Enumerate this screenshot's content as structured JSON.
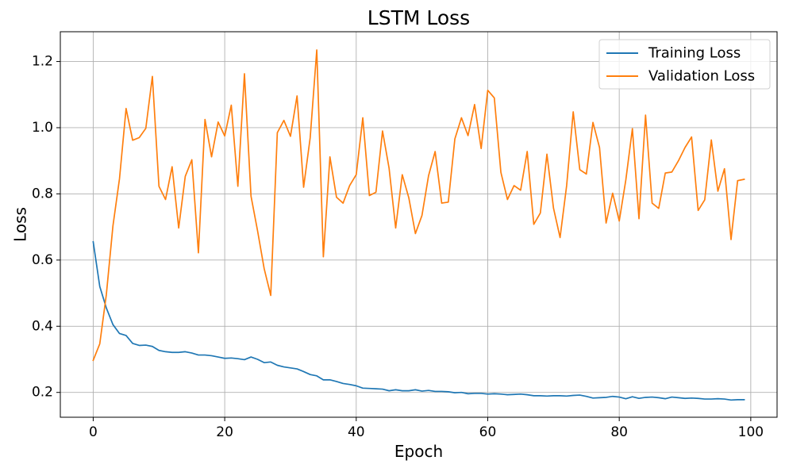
{
  "chart_data": {
    "type": "line",
    "title": "LSTM Loss",
    "xlabel": "Epoch",
    "ylabel": "Loss",
    "xlim": [
      -5,
      104
    ],
    "ylim": [
      0.125,
      1.29
    ],
    "xticks": [
      0,
      20,
      40,
      60,
      80,
      100
    ],
    "yticks": [
      0.2,
      0.4,
      0.6,
      0.8,
      1.0,
      1.2
    ],
    "xtick_labels": [
      "0",
      "20",
      "40",
      "60",
      "80",
      "100"
    ],
    "ytick_labels": [
      "0.2",
      "0.4",
      "0.6",
      "0.8",
      "1.0",
      "1.2"
    ],
    "grid": true,
    "legend_position": "top-right",
    "x": [
      0,
      1,
      2,
      3,
      4,
      5,
      6,
      7,
      8,
      9,
      10,
      11,
      12,
      13,
      14,
      15,
      16,
      17,
      18,
      19,
      20,
      21,
      22,
      23,
      24,
      25,
      26,
      27,
      28,
      29,
      30,
      31,
      32,
      33,
      34,
      35,
      36,
      37,
      38,
      39,
      40,
      41,
      42,
      43,
      44,
      45,
      46,
      47,
      48,
      49,
      50,
      51,
      52,
      53,
      54,
      55,
      56,
      57,
      58,
      59,
      60,
      61,
      62,
      63,
      64,
      65,
      66,
      67,
      68,
      69,
      70,
      71,
      72,
      73,
      74,
      75,
      76,
      77,
      78,
      79,
      80,
      81,
      82,
      83,
      84,
      85,
      86,
      87,
      88,
      89,
      90,
      91,
      92,
      93,
      94,
      95,
      96,
      97,
      98,
      99
    ],
    "series": [
      {
        "name": "Training Loss",
        "color": "#1f77b4",
        "values": [
          0.655,
          0.52,
          0.455,
          0.405,
          0.378,
          0.372,
          0.348,
          0.342,
          0.343,
          0.339,
          0.327,
          0.323,
          0.321,
          0.321,
          0.323,
          0.319,
          0.313,
          0.313,
          0.311,
          0.307,
          0.303,
          0.304,
          0.302,
          0.299,
          0.307,
          0.3,
          0.29,
          0.292,
          0.282,
          0.277,
          0.274,
          0.271,
          0.263,
          0.254,
          0.25,
          0.238,
          0.238,
          0.233,
          0.227,
          0.224,
          0.22,
          0.213,
          0.212,
          0.211,
          0.21,
          0.205,
          0.208,
          0.205,
          0.205,
          0.208,
          0.204,
          0.206,
          0.203,
          0.203,
          0.202,
          0.199,
          0.2,
          0.196,
          0.197,
          0.197,
          0.195,
          0.196,
          0.195,
          0.193,
          0.194,
          0.195,
          0.193,
          0.19,
          0.19,
          0.189,
          0.19,
          0.19,
          0.189,
          0.191,
          0.192,
          0.188,
          0.183,
          0.184,
          0.185,
          0.188,
          0.186,
          0.181,
          0.187,
          0.182,
          0.185,
          0.186,
          0.184,
          0.181,
          0.186,
          0.184,
          0.182,
          0.183,
          0.182,
          0.18,
          0.18,
          0.181,
          0.18,
          0.177,
          0.178,
          0.178
        ]
      },
      {
        "name": "Validation Loss",
        "color": "#ff7f0e",
        "values": [
          0.297,
          0.347,
          0.496,
          0.703,
          0.846,
          1.058,
          0.962,
          0.97,
          0.998,
          1.155,
          0.823,
          0.783,
          0.882,
          0.697,
          0.853,
          0.903,
          0.622,
          1.025,
          0.912,
          1.017,
          0.975,
          1.068,
          0.823,
          1.163,
          0.793,
          0.688,
          0.574,
          0.493,
          0.985,
          1.022,
          0.974,
          1.096,
          0.82,
          0.97,
          1.235,
          0.61,
          0.912,
          0.79,
          0.772,
          0.825,
          0.858,
          1.03,
          0.795,
          0.805,
          0.99,
          0.877,
          0.697,
          0.858,
          0.788,
          0.68,
          0.735,
          0.855,
          0.928,
          0.772,
          0.775,
          0.966,
          1.03,
          0.976,
          1.07,
          0.937,
          1.113,
          1.09,
          0.865,
          0.783,
          0.825,
          0.811,
          0.928,
          0.708,
          0.742,
          0.92,
          0.757,
          0.668,
          0.825,
          1.048,
          0.873,
          0.86,
          1.016,
          0.94,
          0.712,
          0.802,
          0.718,
          0.842,
          0.997,
          0.725,
          1.038,
          0.772,
          0.756,
          0.863,
          0.866,
          0.9,
          0.94,
          0.972,
          0.75,
          0.782,
          0.963,
          0.808,
          0.876,
          0.662,
          0.84,
          0.844
        ]
      }
    ]
  }
}
